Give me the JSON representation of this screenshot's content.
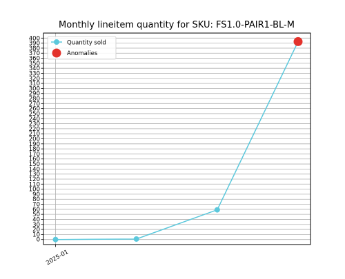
{
  "chart_data": {
    "type": "line",
    "title": "Monthly lineitem quantity for SKU: FS1.0-PAIR1-BL-M",
    "xlabel": "",
    "ylabel": "",
    "x_tick_labels": [
      "2025-01"
    ],
    "x": [
      0,
      1,
      2,
      3
    ],
    "ylim": [
      -10,
      410
    ],
    "yticks": [
      0,
      10,
      20,
      30,
      40,
      50,
      60,
      70,
      80,
      90,
      100,
      110,
      120,
      130,
      140,
      150,
      160,
      170,
      180,
      190,
      200,
      210,
      220,
      230,
      240,
      250,
      260,
      270,
      280,
      290,
      300,
      310,
      320,
      330,
      340,
      350,
      360,
      370,
      380,
      390,
      400
    ],
    "grid": "horizontal and vertical at ticks",
    "legend_position": "upper-left",
    "series": [
      {
        "name": "Quantity sold",
        "values": [
          0,
          1,
          59,
          393
        ],
        "color": "#5bc8dc",
        "marker": "circle"
      },
      {
        "name": "Anomalies",
        "x": [
          3
        ],
        "values": [
          393
        ],
        "color": "#e3322b",
        "marker": "large-circle"
      }
    ]
  }
}
